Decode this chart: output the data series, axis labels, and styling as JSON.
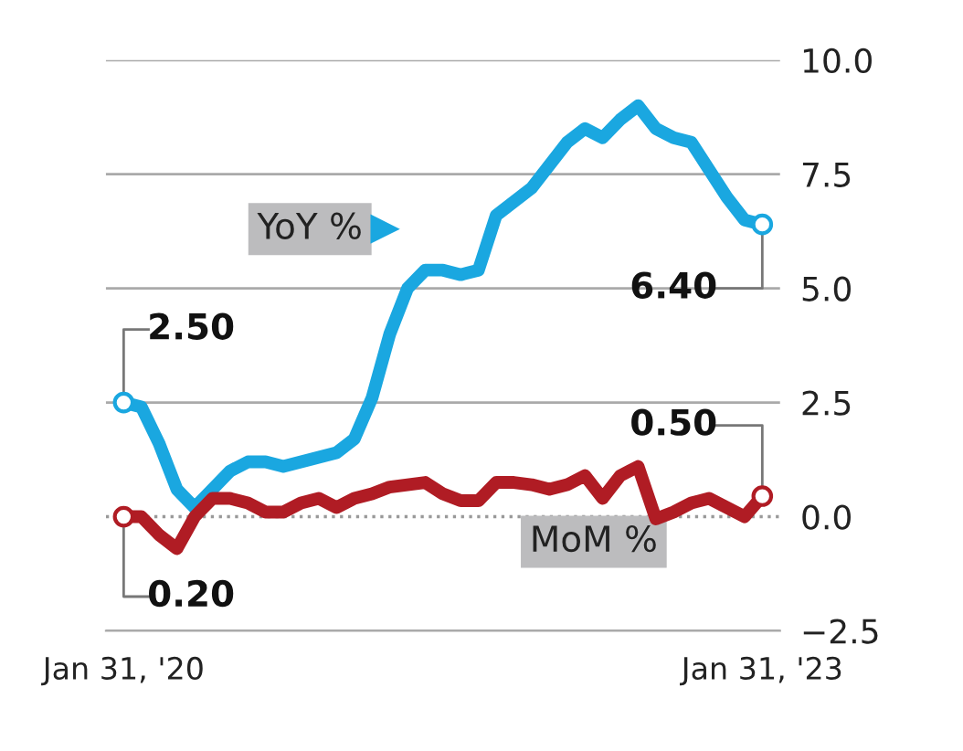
{
  "chart_data": {
    "type": "line",
    "categories": [
      "Jan 31, '20",
      null,
      null,
      null,
      null,
      null,
      null,
      null,
      null,
      null,
      null,
      null,
      null,
      null,
      null,
      null,
      null,
      null,
      null,
      null,
      null,
      null,
      null,
      null,
      null,
      null,
      null,
      null,
      null,
      null,
      null,
      null,
      null,
      null,
      null,
      null,
      "Jan 31, '23"
    ],
    "series": [
      {
        "name": "YoY %",
        "color": "#1aa7e0",
        "values": [
          2.5,
          2.4,
          1.6,
          0.6,
          0.2,
          0.6,
          1.0,
          1.2,
          1.2,
          1.1,
          1.2,
          1.3,
          1.4,
          1.7,
          2.6,
          4.0,
          5.0,
          5.4,
          5.4,
          5.3,
          5.4,
          6.6,
          6.9,
          7.2,
          7.7,
          8.2,
          8.5,
          8.3,
          8.7,
          9.0,
          8.5,
          8.3,
          8.2,
          7.6,
          7.0,
          6.5,
          6.4
        ]
      },
      {
        "name": "MoM %",
        "color": "#b01c24",
        "values": [
          0.0,
          0.0,
          -0.4,
          -0.7,
          0.0,
          0.4,
          0.4,
          0.3,
          0.1,
          0.1,
          0.3,
          0.4,
          0.2,
          0.4,
          0.5,
          0.65,
          0.7,
          0.75,
          0.5,
          0.35,
          0.35,
          0.75,
          0.75,
          0.7,
          0.6,
          0.7,
          0.9,
          0.4,
          0.9,
          1.1,
          -0.05,
          0.1,
          0.3,
          0.4,
          0.2,
          0.0,
          0.45
        ]
      }
    ],
    "ylim": [
      -2.5,
      10.0
    ],
    "yticks": [
      {
        "value": -2.5,
        "label": "−2.5"
      },
      {
        "value": 0,
        "label": "0.0"
      },
      2.5,
      {
        "value": 5,
        "label": "5.0"
      },
      7.5,
      {
        "value": 10,
        "label": "10.0"
      }
    ],
    "grid": "y",
    "ref_lines": [
      {
        "axis": "y",
        "value": 0.0,
        "line_style": "dotted",
        "color": "#999999"
      }
    ],
    "annotations": [
      "2.50",
      "0.20",
      "6.40",
      "0.50"
    ]
  }
}
